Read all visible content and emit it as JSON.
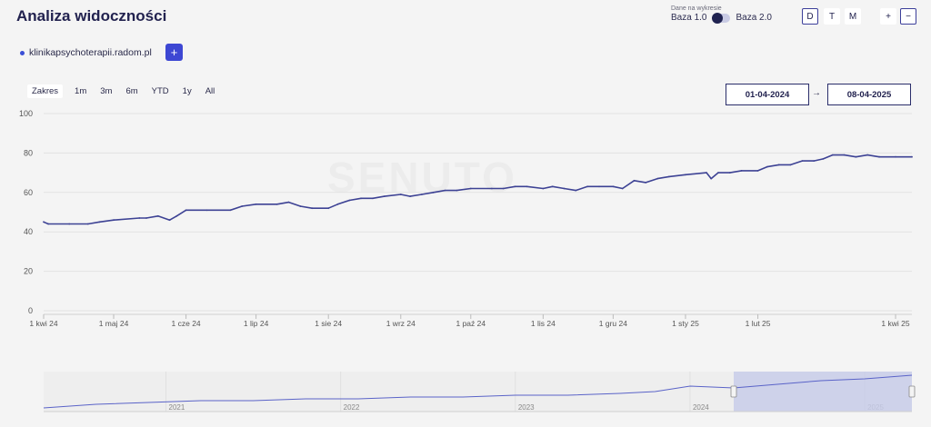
{
  "header": {
    "title": "Analiza widoczności",
    "data_caption": "Dane na wykresie",
    "base1": "Baza 1.0",
    "base2": "Baza 2.0",
    "period_buttons": [
      "D",
      "T",
      "M"
    ],
    "zoom_in": "+",
    "zoom_out": "−"
  },
  "domain": {
    "name": "klinikapsychoterapii.radom.pl",
    "add_label": "+"
  },
  "range_selector": {
    "label": "Zakres",
    "options": [
      "1m",
      "3m",
      "6m",
      "YTD",
      "1y",
      "All"
    ]
  },
  "dates": {
    "from": "01-04-2024",
    "to": "08-04-2025",
    "arrow": "→"
  },
  "watermark": "SENUTO",
  "colors": {
    "line": "#3d4294",
    "navigator_fill": "#c8cde9",
    "accent": "#3d47d3"
  },
  "chart_data": [
    {
      "type": "line",
      "title": "",
      "xlabel": "",
      "ylabel": "",
      "ylim": [
        0,
        100
      ],
      "yticks": [
        0,
        20,
        40,
        60,
        80,
        100
      ],
      "x_tick_labels": [
        "1 kwi 24",
        "1 maj 24",
        "1 cze 24",
        "1 lip 24",
        "1 sie 24",
        "1 wrz 24",
        "1 paź 24",
        "1 lis 24",
        "1 gru 24",
        "1 sty 25",
        "1 lut 25",
        "1 kwi 25"
      ],
      "x": [
        "2024-04-01",
        "2024-04-03",
        "2024-04-12",
        "2024-04-20",
        "2024-04-25",
        "2024-05-01",
        "2024-05-12",
        "2024-05-15",
        "2024-05-20",
        "2024-05-25",
        "2024-05-28",
        "2024-06-01",
        "2024-06-10",
        "2024-06-20",
        "2024-06-25",
        "2024-07-01",
        "2024-07-10",
        "2024-07-15",
        "2024-07-20",
        "2024-07-25",
        "2024-08-01",
        "2024-08-05",
        "2024-08-10",
        "2024-08-15",
        "2024-08-20",
        "2024-08-25",
        "2024-09-01",
        "2024-09-05",
        "2024-09-10",
        "2024-09-15",
        "2024-09-20",
        "2024-09-25",
        "2024-10-01",
        "2024-10-10",
        "2024-10-15",
        "2024-10-20",
        "2024-10-25",
        "2024-11-01",
        "2024-11-05",
        "2024-11-10",
        "2024-11-15",
        "2024-11-20",
        "2024-11-25",
        "2024-12-01",
        "2024-12-05",
        "2024-12-10",
        "2024-12-15",
        "2024-12-20",
        "2024-12-25",
        "2025-01-01",
        "2025-01-10",
        "2025-01-12",
        "2025-01-15",
        "2025-01-20",
        "2025-01-25",
        "2025-02-01",
        "2025-02-05",
        "2025-02-10",
        "2025-02-15",
        "2025-02-20",
        "2025-02-25",
        "2025-03-01",
        "2025-03-05",
        "2025-03-10",
        "2025-03-15",
        "2025-03-20",
        "2025-03-25",
        "2025-04-01",
        "2025-04-08"
      ],
      "values": [
        45,
        44,
        44,
        44,
        45,
        46,
        47,
        47,
        48,
        46,
        48,
        51,
        51,
        51,
        53,
        54,
        54,
        55,
        53,
        52,
        52,
        54,
        56,
        57,
        57,
        58,
        59,
        58,
        59,
        60,
        61,
        61,
        62,
        62,
        62,
        63,
        63,
        62,
        63,
        62,
        61,
        63,
        63,
        63,
        62,
        66,
        65,
        67,
        68,
        69,
        70,
        67,
        70,
        70,
        71,
        71,
        73,
        74,
        74,
        76,
        76,
        77,
        79,
        79,
        78,
        79,
        78,
        78,
        78
      ]
    },
    {
      "type": "area",
      "title": "",
      "x_tick_labels": [
        "2021",
        "2022",
        "2023",
        "2024",
        "2025"
      ],
      "x": [
        2020.3,
        2020.6,
        2020.9,
        2021.2,
        2021.5,
        2021.8,
        2022.1,
        2022.4,
        2022.7,
        2023.0,
        2023.3,
        2023.6,
        2023.8,
        2024.0,
        2024.25,
        2024.5,
        2024.75,
        2025.0,
        2025.27
      ],
      "values": [
        2,
        4,
        5,
        6,
        6,
        7,
        7,
        8,
        8,
        9,
        9,
        10,
        11,
        14,
        13,
        15,
        17,
        18,
        20
      ],
      "selected_range": [
        "2024-04-01",
        "2025-04-08"
      ]
    }
  ]
}
